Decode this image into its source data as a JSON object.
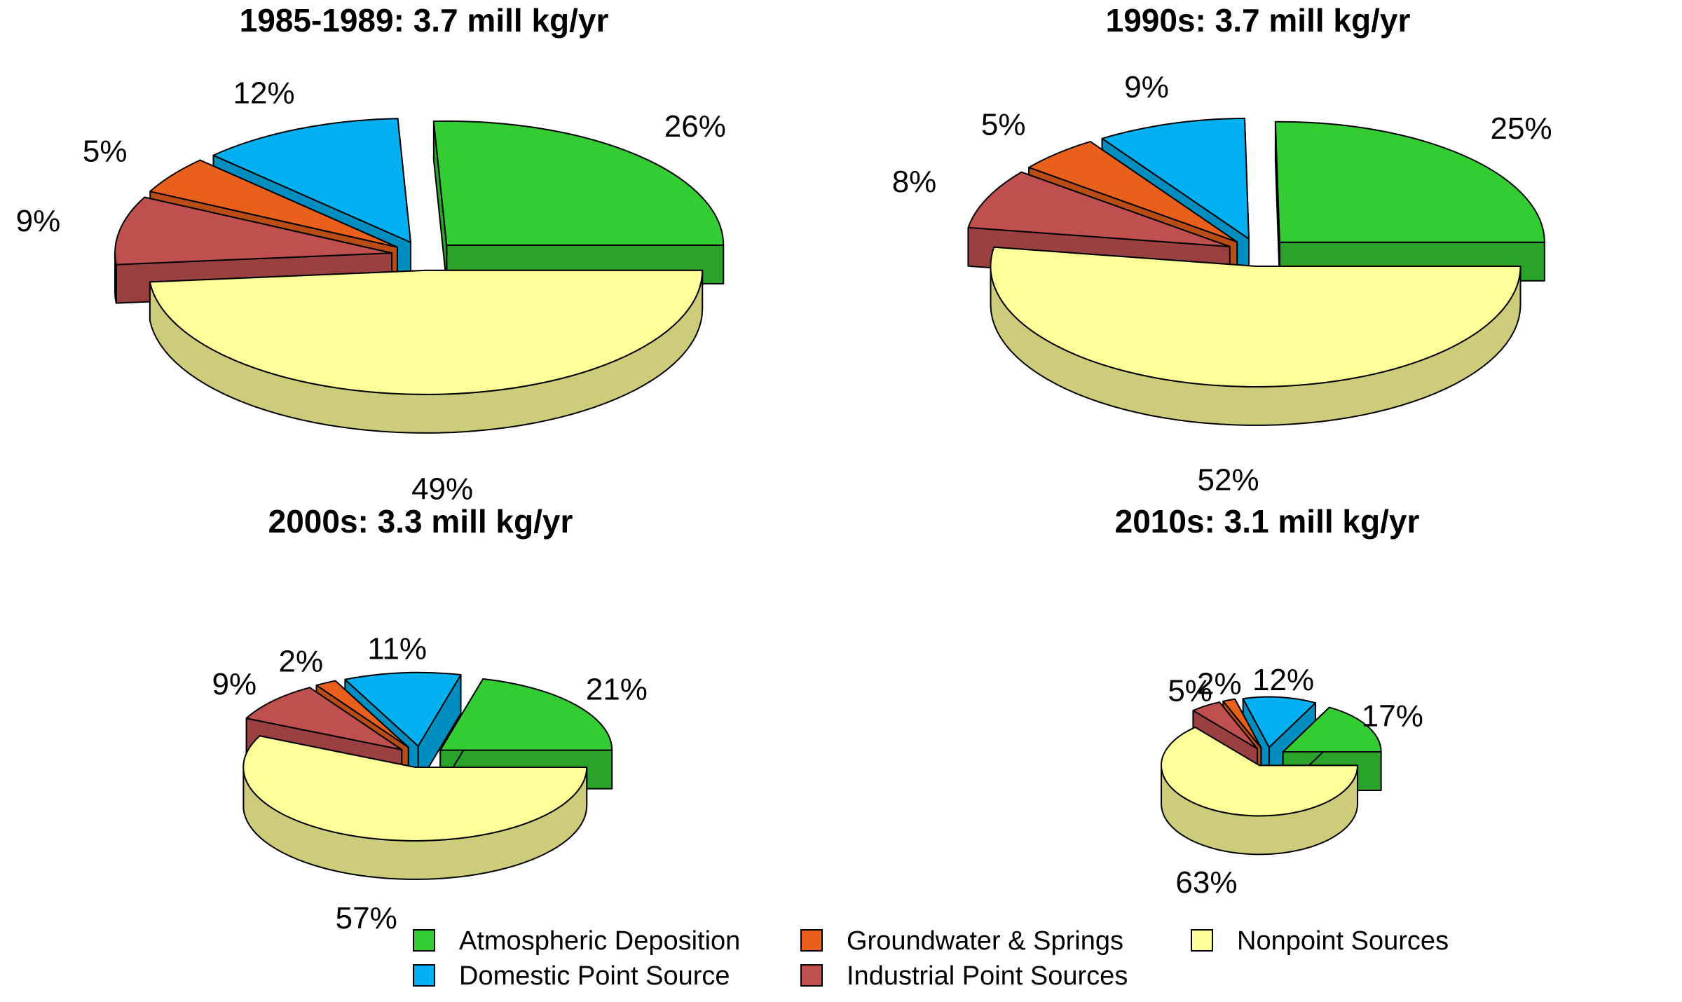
{
  "colors": {
    "Atmospheric Deposition": "#33cc33",
    "Domestic Point Source": "#00b0f0",
    "Groundwater & Springs": "#e8601c",
    "Industrial Point Sources": "#c05050",
    "Nonpoint Sources": "#ffff99"
  },
  "chart_data": [
    {
      "type": "pie",
      "title": "1985-1989: 3.7 mill kg/yr",
      "slices": [
        {
          "category": "Atmospheric Deposition",
          "value": 26,
          "label": "26%"
        },
        {
          "category": "Domestic Point Source",
          "value": 12,
          "label": "12%"
        },
        {
          "category": "Groundwater & Springs",
          "value": 5,
          "label": "5%"
        },
        {
          "category": "Industrial Point Sources",
          "value": 9,
          "label": "9%"
        },
        {
          "category": "Nonpoint Sources",
          "value": 49,
          "label": "49%"
        }
      ]
    },
    {
      "type": "pie",
      "title": "1990s: 3.7 mill kg/yr",
      "slices": [
        {
          "category": "Atmospheric Deposition",
          "value": 25,
          "label": "25%"
        },
        {
          "category": "Domestic Point Source",
          "value": 9,
          "label": "9%"
        },
        {
          "category": "Groundwater & Springs",
          "value": 5,
          "label": "5%"
        },
        {
          "category": "Industrial Point Sources",
          "value": 8,
          "label": "8%"
        },
        {
          "category": "Nonpoint Sources",
          "value": 52,
          "label": "52%"
        }
      ]
    },
    {
      "type": "pie",
      "title": "2000s: 3.3 mill kg/yr",
      "slices": [
        {
          "category": "Atmospheric Deposition",
          "value": 21,
          "label": "21%"
        },
        {
          "category": "Domestic Point Source",
          "value": 11,
          "label": "11%"
        },
        {
          "category": "Groundwater & Springs",
          "value": 2,
          "label": "2%"
        },
        {
          "category": "Industrial Point Sources",
          "value": 9,
          "label": "9%"
        },
        {
          "category": "Nonpoint Sources",
          "value": 57,
          "label": "57%"
        }
      ]
    },
    {
      "type": "pie",
      "title": "2010s: 3.1 mill kg/yr",
      "slices": [
        {
          "category": "Atmospheric Deposition",
          "value": 17,
          "label": "17%"
        },
        {
          "category": "Domestic Point Source",
          "value": 12,
          "label": "12%"
        },
        {
          "category": "Groundwater & Springs",
          "value": 2,
          "label": "2%"
        },
        {
          "category": "Industrial Point Sources",
          "value": 5,
          "label": "5%"
        },
        {
          "category": "Nonpoint Sources",
          "value": 63,
          "label": "63%"
        }
      ]
    }
  ],
  "legend": {
    "placement": "bottom",
    "items": [
      {
        "label": "Atmospheric Deposition",
        "category": "Atmospheric Deposition"
      },
      {
        "label": "Groundwater & Springs",
        "category": "Groundwater & Springs"
      },
      {
        "label": "Nonpoint Sources",
        "category": "Nonpoint Sources"
      },
      {
        "label": "Domestic Point Source",
        "category": "Domestic Point Source"
      },
      {
        "label": "Industrial Point Sources",
        "category": "Industrial Point Sources"
      }
    ]
  }
}
